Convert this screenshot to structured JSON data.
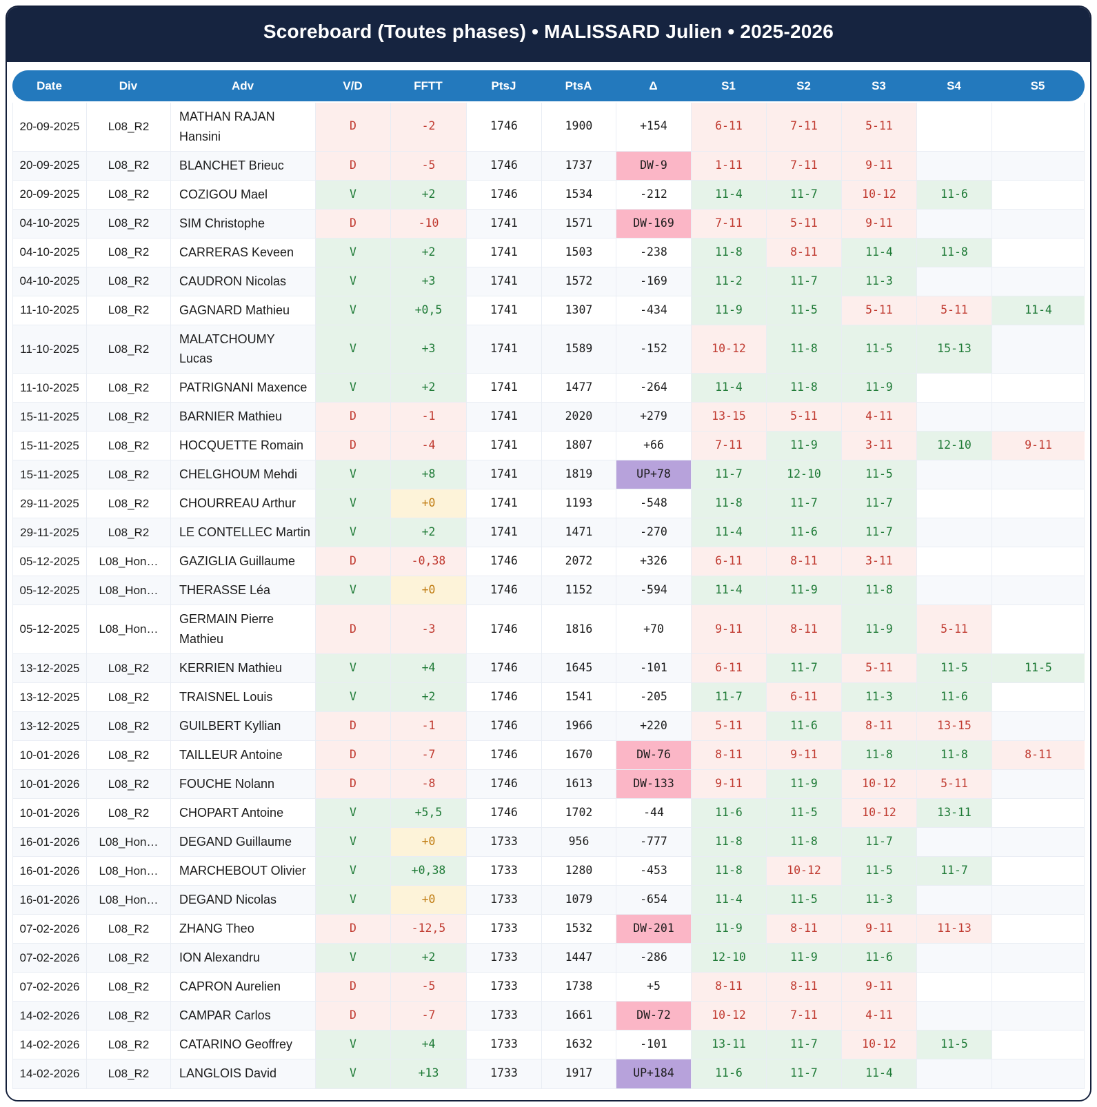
{
  "title": "Scoreboard (Toutes phases) • MALISSARD Julien • 2025-2026",
  "header": {
    "columns": [
      "Date",
      "Div",
      "Adv",
      "V/D",
      "FFTT",
      "PtsJ",
      "PtsA",
      "Δ",
      "S1",
      "S2",
      "S3",
      "S4",
      "S5"
    ]
  },
  "colors": {
    "card_border": "#131f3a",
    "title_band_bg": "#162440",
    "title_text": "#ffffff",
    "header_pill_bg": "#2379bd",
    "header_text": "#ffffff",
    "row_alt_bg": "#f7f9fc",
    "grid_line": "#e9edf4",
    "win_bg": "#e6f3e9",
    "win_text": "#1e7a36",
    "loss_bg": "#fdeeec",
    "loss_text": "#c03a30",
    "zero_bg": "#fdf3d9",
    "zero_text": "#c07c12",
    "dw_bg": "#fbb6c6",
    "up_bg": "#b7a2db"
  },
  "rows": [
    {
      "date": "20-09-2025",
      "div": "L08_R2",
      "adv": "MATHAN RAJAN Hansini",
      "vd": "D",
      "fftt": "-2",
      "fftt_kind": "loss",
      "ptsj": "1746",
      "ptsa": "1900",
      "delta": "+154",
      "delta_kind": "plain",
      "sets": [
        {
          "score": "6-11",
          "won": false
        },
        {
          "score": "7-11",
          "won": false
        },
        {
          "score": "5-11",
          "won": false
        }
      ]
    },
    {
      "date": "20-09-2025",
      "div": "L08_R2",
      "adv": "BLANCHET Brieuc",
      "vd": "D",
      "fftt": "-5",
      "fftt_kind": "loss",
      "ptsj": "1746",
      "ptsa": "1737",
      "delta": "DW-9",
      "delta_kind": "dw",
      "sets": [
        {
          "score": "1-11",
          "won": false
        },
        {
          "score": "7-11",
          "won": false
        },
        {
          "score": "9-11",
          "won": false
        }
      ]
    },
    {
      "date": "20-09-2025",
      "div": "L08_R2",
      "adv": "COZIGOU Mael",
      "vd": "V",
      "fftt": "+2",
      "fftt_kind": "win",
      "ptsj": "1746",
      "ptsa": "1534",
      "delta": "-212",
      "delta_kind": "plain",
      "sets": [
        {
          "score": "11-4",
          "won": true
        },
        {
          "score": "11-7",
          "won": true
        },
        {
          "score": "10-12",
          "won": false
        },
        {
          "score": "11-6",
          "won": true
        }
      ]
    },
    {
      "date": "04-10-2025",
      "div": "L08_R2",
      "adv": "SIM Christophe",
      "vd": "D",
      "fftt": "-10",
      "fftt_kind": "loss",
      "ptsj": "1741",
      "ptsa": "1571",
      "delta": "DW-169",
      "delta_kind": "dw",
      "sets": [
        {
          "score": "7-11",
          "won": false
        },
        {
          "score": "5-11",
          "won": false
        },
        {
          "score": "9-11",
          "won": false
        }
      ]
    },
    {
      "date": "04-10-2025",
      "div": "L08_R2",
      "adv": "CARRERAS Keveen",
      "vd": "V",
      "fftt": "+2",
      "fftt_kind": "win",
      "ptsj": "1741",
      "ptsa": "1503",
      "delta": "-238",
      "delta_kind": "plain",
      "sets": [
        {
          "score": "11-8",
          "won": true
        },
        {
          "score": "8-11",
          "won": false
        },
        {
          "score": "11-4",
          "won": true
        },
        {
          "score": "11-8",
          "won": true
        }
      ]
    },
    {
      "date": "04-10-2025",
      "div": "L08_R2",
      "adv": "CAUDRON Nicolas",
      "vd": "V",
      "fftt": "+3",
      "fftt_kind": "win",
      "ptsj": "1741",
      "ptsa": "1572",
      "delta": "-169",
      "delta_kind": "plain",
      "sets": [
        {
          "score": "11-2",
          "won": true
        },
        {
          "score": "11-7",
          "won": true
        },
        {
          "score": "11-3",
          "won": true
        }
      ]
    },
    {
      "date": "11-10-2025",
      "div": "L08_R2",
      "adv": "GAGNARD Mathieu",
      "vd": "V",
      "fftt": "+0,5",
      "fftt_kind": "win",
      "ptsj": "1741",
      "ptsa": "1307",
      "delta": "-434",
      "delta_kind": "plain",
      "sets": [
        {
          "score": "11-9",
          "won": true
        },
        {
          "score": "11-5",
          "won": true
        },
        {
          "score": "5-11",
          "won": false
        },
        {
          "score": "5-11",
          "won": false
        },
        {
          "score": "11-4",
          "won": true
        }
      ]
    },
    {
      "date": "11-10-2025",
      "div": "L08_R2",
      "adv": "MALATCHOUMY Lucas",
      "vd": "V",
      "fftt": "+3",
      "fftt_kind": "win",
      "ptsj": "1741",
      "ptsa": "1589",
      "delta": "-152",
      "delta_kind": "plain",
      "sets": [
        {
          "score": "10-12",
          "won": false
        },
        {
          "score": "11-8",
          "won": true
        },
        {
          "score": "11-5",
          "won": true
        },
        {
          "score": "15-13",
          "won": true
        }
      ]
    },
    {
      "date": "11-10-2025",
      "div": "L08_R2",
      "adv": "PATRIGNANI Maxence",
      "vd": "V",
      "fftt": "+2",
      "fftt_kind": "win",
      "ptsj": "1741",
      "ptsa": "1477",
      "delta": "-264",
      "delta_kind": "plain",
      "sets": [
        {
          "score": "11-4",
          "won": true
        },
        {
          "score": "11-8",
          "won": true
        },
        {
          "score": "11-9",
          "won": true
        }
      ]
    },
    {
      "date": "15-11-2025",
      "div": "L08_R2",
      "adv": "BARNIER Mathieu",
      "vd": "D",
      "fftt": "-1",
      "fftt_kind": "loss",
      "ptsj": "1741",
      "ptsa": "2020",
      "delta": "+279",
      "delta_kind": "plain",
      "sets": [
        {
          "score": "13-15",
          "won": false
        },
        {
          "score": "5-11",
          "won": false
        },
        {
          "score": "4-11",
          "won": false
        }
      ]
    },
    {
      "date": "15-11-2025",
      "div": "L08_R2",
      "adv": "HOCQUETTE Romain",
      "vd": "D",
      "fftt": "-4",
      "fftt_kind": "loss",
      "ptsj": "1741",
      "ptsa": "1807",
      "delta": "+66",
      "delta_kind": "plain",
      "sets": [
        {
          "score": "7-11",
          "won": false
        },
        {
          "score": "11-9",
          "won": true
        },
        {
          "score": "3-11",
          "won": false
        },
        {
          "score": "12-10",
          "won": true
        },
        {
          "score": "9-11",
          "won": false
        }
      ]
    },
    {
      "date": "15-11-2025",
      "div": "L08_R2",
      "adv": "CHELGHOUM Mehdi",
      "vd": "V",
      "fftt": "+8",
      "fftt_kind": "win",
      "ptsj": "1741",
      "ptsa": "1819",
      "delta": "UP+78",
      "delta_kind": "up",
      "sets": [
        {
          "score": "11-7",
          "won": true
        },
        {
          "score": "12-10",
          "won": true
        },
        {
          "score": "11-5",
          "won": true
        }
      ]
    },
    {
      "date": "29-11-2025",
      "div": "L08_R2",
      "adv": "CHOURREAU Arthur",
      "vd": "V",
      "fftt": "+0",
      "fftt_kind": "zero",
      "ptsj": "1741",
      "ptsa": "1193",
      "delta": "-548",
      "delta_kind": "plain",
      "sets": [
        {
          "score": "11-8",
          "won": true
        },
        {
          "score": "11-7",
          "won": true
        },
        {
          "score": "11-7",
          "won": true
        }
      ]
    },
    {
      "date": "29-11-2025",
      "div": "L08_R2",
      "adv": "LE CONTELLEC Martin",
      "vd": "V",
      "fftt": "+2",
      "fftt_kind": "win",
      "ptsj": "1741",
      "ptsa": "1471",
      "delta": "-270",
      "delta_kind": "plain",
      "sets": [
        {
          "score": "11-4",
          "won": true
        },
        {
          "score": "11-6",
          "won": true
        },
        {
          "score": "11-7",
          "won": true
        }
      ]
    },
    {
      "date": "05-12-2025",
      "div": "L08_Hon…",
      "adv": "GAZIGLIA Guillaume",
      "vd": "D",
      "fftt": "-0,38",
      "fftt_kind": "loss",
      "ptsj": "1746",
      "ptsa": "2072",
      "delta": "+326",
      "delta_kind": "plain",
      "sets": [
        {
          "score": "6-11",
          "won": false
        },
        {
          "score": "8-11",
          "won": false
        },
        {
          "score": "3-11",
          "won": false
        }
      ]
    },
    {
      "date": "05-12-2025",
      "div": "L08_Hon…",
      "adv": "THERASSE Léa",
      "vd": "V",
      "fftt": "+0",
      "fftt_kind": "zero",
      "ptsj": "1746",
      "ptsa": "1152",
      "delta": "-594",
      "delta_kind": "plain",
      "sets": [
        {
          "score": "11-4",
          "won": true
        },
        {
          "score": "11-9",
          "won": true
        },
        {
          "score": "11-8",
          "won": true
        }
      ]
    },
    {
      "date": "05-12-2025",
      "div": "L08_Hon…",
      "adv": "GERMAIN Pierre Mathieu",
      "vd": "D",
      "fftt": "-3",
      "fftt_kind": "loss",
      "ptsj": "1746",
      "ptsa": "1816",
      "delta": "+70",
      "delta_kind": "plain",
      "sets": [
        {
          "score": "9-11",
          "won": false
        },
        {
          "score": "8-11",
          "won": false
        },
        {
          "score": "11-9",
          "won": true
        },
        {
          "score": "5-11",
          "won": false
        }
      ]
    },
    {
      "date": "13-12-2025",
      "div": "L08_R2",
      "adv": "KERRIEN Mathieu",
      "vd": "V",
      "fftt": "+4",
      "fftt_kind": "win",
      "ptsj": "1746",
      "ptsa": "1645",
      "delta": "-101",
      "delta_kind": "plain",
      "sets": [
        {
          "score": "6-11",
          "won": false
        },
        {
          "score": "11-7",
          "won": true
        },
        {
          "score": "5-11",
          "won": false
        },
        {
          "score": "11-5",
          "won": true
        },
        {
          "score": "11-5",
          "won": true
        }
      ]
    },
    {
      "date": "13-12-2025",
      "div": "L08_R2",
      "adv": "TRAISNEL Louis",
      "vd": "V",
      "fftt": "+2",
      "fftt_kind": "win",
      "ptsj": "1746",
      "ptsa": "1541",
      "delta": "-205",
      "delta_kind": "plain",
      "sets": [
        {
          "score": "11-7",
          "won": true
        },
        {
          "score": "6-11",
          "won": false
        },
        {
          "score": "11-3",
          "won": true
        },
        {
          "score": "11-6",
          "won": true
        }
      ]
    },
    {
      "date": "13-12-2025",
      "div": "L08_R2",
      "adv": "GUILBERT Kyllian",
      "vd": "D",
      "fftt": "-1",
      "fftt_kind": "loss",
      "ptsj": "1746",
      "ptsa": "1966",
      "delta": "+220",
      "delta_kind": "plain",
      "sets": [
        {
          "score": "5-11",
          "won": false
        },
        {
          "score": "11-6",
          "won": true
        },
        {
          "score": "8-11",
          "won": false
        },
        {
          "score": "13-15",
          "won": false
        }
      ]
    },
    {
      "date": "10-01-2026",
      "div": "L08_R2",
      "adv": "TAILLEUR Antoine",
      "vd": "D",
      "fftt": "-7",
      "fftt_kind": "loss",
      "ptsj": "1746",
      "ptsa": "1670",
      "delta": "DW-76",
      "delta_kind": "dw",
      "sets": [
        {
          "score": "8-11",
          "won": false
        },
        {
          "score": "9-11",
          "won": false
        },
        {
          "score": "11-8",
          "won": true
        },
        {
          "score": "11-8",
          "won": true
        },
        {
          "score": "8-11",
          "won": false
        }
      ]
    },
    {
      "date": "10-01-2026",
      "div": "L08_R2",
      "adv": "FOUCHE Nolann",
      "vd": "D",
      "fftt": "-8",
      "fftt_kind": "loss",
      "ptsj": "1746",
      "ptsa": "1613",
      "delta": "DW-133",
      "delta_kind": "dw",
      "sets": [
        {
          "score": "9-11",
          "won": false
        },
        {
          "score": "11-9",
          "won": true
        },
        {
          "score": "10-12",
          "won": false
        },
        {
          "score": "5-11",
          "won": false
        }
      ]
    },
    {
      "date": "10-01-2026",
      "div": "L08_R2",
      "adv": "CHOPART Antoine",
      "vd": "V",
      "fftt": "+5,5",
      "fftt_kind": "win",
      "ptsj": "1746",
      "ptsa": "1702",
      "delta": "-44",
      "delta_kind": "plain",
      "sets": [
        {
          "score": "11-6",
          "won": true
        },
        {
          "score": "11-5",
          "won": true
        },
        {
          "score": "10-12",
          "won": false
        },
        {
          "score": "13-11",
          "won": true
        }
      ]
    },
    {
      "date": "16-01-2026",
      "div": "L08_Hon…",
      "adv": "DEGAND Guillaume",
      "vd": "V",
      "fftt": "+0",
      "fftt_kind": "zero",
      "ptsj": "1733",
      "ptsa": "956",
      "delta": "-777",
      "delta_kind": "plain",
      "sets": [
        {
          "score": "11-8",
          "won": true
        },
        {
          "score": "11-8",
          "won": true
        },
        {
          "score": "11-7",
          "won": true
        }
      ]
    },
    {
      "date": "16-01-2026",
      "div": "L08_Hon…",
      "adv": "MARCHEBOUT Olivier",
      "vd": "V",
      "fftt": "+0,38",
      "fftt_kind": "win",
      "ptsj": "1733",
      "ptsa": "1280",
      "delta": "-453",
      "delta_kind": "plain",
      "sets": [
        {
          "score": "11-8",
          "won": true
        },
        {
          "score": "10-12",
          "won": false
        },
        {
          "score": "11-5",
          "won": true
        },
        {
          "score": "11-7",
          "won": true
        }
      ]
    },
    {
      "date": "16-01-2026",
      "div": "L08_Hon…",
      "adv": "DEGAND Nicolas",
      "vd": "V",
      "fftt": "+0",
      "fftt_kind": "zero",
      "ptsj": "1733",
      "ptsa": "1079",
      "delta": "-654",
      "delta_kind": "plain",
      "sets": [
        {
          "score": "11-4",
          "won": true
        },
        {
          "score": "11-5",
          "won": true
        },
        {
          "score": "11-3",
          "won": true
        }
      ]
    },
    {
      "date": "07-02-2026",
      "div": "L08_R2",
      "adv": "ZHANG Theo",
      "vd": "D",
      "fftt": "-12,5",
      "fftt_kind": "loss",
      "ptsj": "1733",
      "ptsa": "1532",
      "delta": "DW-201",
      "delta_kind": "dw",
      "sets": [
        {
          "score": "11-9",
          "won": true
        },
        {
          "score": "8-11",
          "won": false
        },
        {
          "score": "9-11",
          "won": false
        },
        {
          "score": "11-13",
          "won": false
        }
      ]
    },
    {
      "date": "07-02-2026",
      "div": "L08_R2",
      "adv": "ION Alexandru",
      "vd": "V",
      "fftt": "+2",
      "fftt_kind": "win",
      "ptsj": "1733",
      "ptsa": "1447",
      "delta": "-286",
      "delta_kind": "plain",
      "sets": [
        {
          "score": "12-10",
          "won": true
        },
        {
          "score": "11-9",
          "won": true
        },
        {
          "score": "11-6",
          "won": true
        }
      ]
    },
    {
      "date": "07-02-2026",
      "div": "L08_R2",
      "adv": "CAPRON Aurelien",
      "vd": "D",
      "fftt": "-5",
      "fftt_kind": "loss",
      "ptsj": "1733",
      "ptsa": "1738",
      "delta": "+5",
      "delta_kind": "plain",
      "sets": [
        {
          "score": "8-11",
          "won": false
        },
        {
          "score": "8-11",
          "won": false
        },
        {
          "score": "9-11",
          "won": false
        }
      ]
    },
    {
      "date": "14-02-2026",
      "div": "L08_R2",
      "adv": "CAMPAR Carlos",
      "vd": "D",
      "fftt": "-7",
      "fftt_kind": "loss",
      "ptsj": "1733",
      "ptsa": "1661",
      "delta": "DW-72",
      "delta_kind": "dw",
      "sets": [
        {
          "score": "10-12",
          "won": false
        },
        {
          "score": "7-11",
          "won": false
        },
        {
          "score": "4-11",
          "won": false
        }
      ]
    },
    {
      "date": "14-02-2026",
      "div": "L08_R2",
      "adv": "CATARINO Geoffrey",
      "vd": "V",
      "fftt": "+4",
      "fftt_kind": "win",
      "ptsj": "1733",
      "ptsa": "1632",
      "delta": "-101",
      "delta_kind": "plain",
      "sets": [
        {
          "score": "13-11",
          "won": true
        },
        {
          "score": "11-7",
          "won": true
        },
        {
          "score": "10-12",
          "won": false
        },
        {
          "score": "11-5",
          "won": true
        }
      ]
    },
    {
      "date": "14-02-2026",
      "div": "L08_R2",
      "adv": "LANGLOIS David",
      "vd": "V",
      "fftt": "+13",
      "fftt_kind": "win",
      "ptsj": "1733",
      "ptsa": "1917",
      "delta": "UP+184",
      "delta_kind": "up",
      "sets": [
        {
          "score": "11-6",
          "won": true
        },
        {
          "score": "11-7",
          "won": true
        },
        {
          "score": "11-4",
          "won": true
        }
      ]
    }
  ]
}
